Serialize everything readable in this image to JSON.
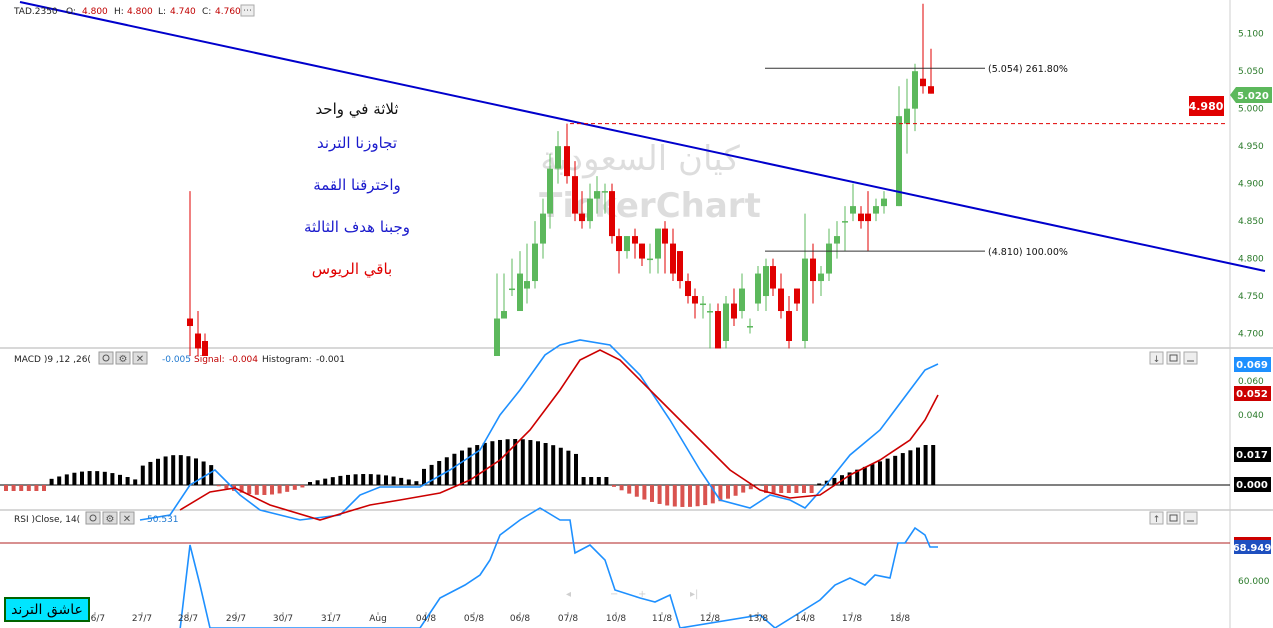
{
  "main_legend": {
    "symbol": "TAD.2350",
    "o_label": "O:",
    "o_value": "4.800",
    "h_label": "H:",
    "h_value": "4.800",
    "l_label": "L:",
    "l_value": "4.740",
    "c_label": "C:",
    "c_value": "4.760"
  },
  "annotations": {
    "line1": "ثلاثة في واحد",
    "line2": "تجاوزنا الترند",
    "line3": "واخترقنا القمة",
    "line4": "وجبنا هدف الثالثة",
    "line5": "باقي الريوس"
  },
  "watermark": {
    "arabic": "كيان السعودية",
    "latin": "TickerChart"
  },
  "fib": {
    "upper_label": "(5.054) 261.80%",
    "lower_label": "(4.810) 100.00%"
  },
  "price_badges": {
    "last": "5.020",
    "alert": "4.980"
  },
  "macd": {
    "title": "MACD  )9 ,12 ,26(",
    "macd_value": "-0.005",
    "signal_label": "Signal:",
    "signal_value": "-0.004",
    "hist_label": "Histogram:",
    "hist_value": "-0.001",
    "badges": {
      "macd": "0.069",
      "signal": "0.052",
      "hist": "0.017",
      "zero": "0.000"
    }
  },
  "rsi": {
    "title": "RSI  )Close, 14(",
    "value": "50.531",
    "badge": "68.949"
  },
  "bottom_badge": "عاشق الترند",
  "colors": {
    "up": "#5cb85c",
    "down": "#e00000",
    "trend": "#0000cc",
    "macd": "#1e90ff",
    "signal": "#cc0000",
    "hist_pos": "#000000",
    "hist_neg": "#d9534f"
  },
  "chart_data": [
    {
      "type": "candlestick",
      "title": "TAD.2350",
      "y_ticks": [
        "5.100",
        "5.050",
        "5.000",
        "4.950",
        "4.900",
        "4.850",
        "4.800",
        "4.750",
        "4.700"
      ],
      "ylim": [
        4.682,
        5.145
      ],
      "x_ticks": [
        "26/7",
        "27/7",
        "28/7",
        "29/7",
        "30/7",
        "31/7",
        "Aug",
        "04/8",
        "05/8",
        "06/8",
        "07/8",
        "10/8",
        "11/8",
        "12/8",
        "13/8",
        "14/8",
        "17/8",
        "18/8"
      ],
      "candles": [
        {
          "x": 190,
          "o": 4.72,
          "h": 4.89,
          "l": 4.67,
          "c": 4.71
        },
        {
          "x": 198,
          "o": 4.7,
          "h": 4.73,
          "l": 4.67,
          "c": 4.68
        },
        {
          "x": 205,
          "o": 4.69,
          "h": 4.7,
          "l": 4.67,
          "c": 4.67
        },
        {
          "x": 497,
          "o": 4.67,
          "h": 4.78,
          "l": 4.67,
          "c": 4.72
        },
        {
          "x": 504,
          "o": 4.72,
          "h": 4.78,
          "l": 4.72,
          "c": 4.73
        },
        {
          "x": 512,
          "o": 4.76,
          "h": 4.8,
          "l": 4.75,
          "c": 4.76
        },
        {
          "x": 520,
          "o": 4.73,
          "h": 4.81,
          "l": 4.73,
          "c": 4.78
        },
        {
          "x": 527,
          "o": 4.76,
          "h": 4.82,
          "l": 4.74,
          "c": 4.77
        },
        {
          "x": 535,
          "o": 4.77,
          "h": 4.85,
          "l": 4.76,
          "c": 4.82
        },
        {
          "x": 543,
          "o": 4.82,
          "h": 4.88,
          "l": 4.8,
          "c": 4.86
        },
        {
          "x": 550,
          "o": 4.86,
          "h": 4.94,
          "l": 4.84,
          "c": 4.92
        },
        {
          "x": 558,
          "o": 4.92,
          "h": 4.97,
          "l": 4.9,
          "c": 4.95
        },
        {
          "x": 567,
          "o": 4.95,
          "h": 4.98,
          "l": 4.9,
          "c": 4.91
        },
        {
          "x": 575,
          "o": 4.91,
          "h": 4.93,
          "l": 4.85,
          "c": 4.86
        },
        {
          "x": 582,
          "o": 4.86,
          "h": 4.89,
          "l": 4.84,
          "c": 4.85
        },
        {
          "x": 590,
          "o": 4.85,
          "h": 4.9,
          "l": 4.84,
          "c": 4.88
        },
        {
          "x": 597,
          "o": 4.88,
          "h": 4.91,
          "l": 4.86,
          "c": 4.89
        },
        {
          "x": 605,
          "o": 4.89,
          "h": 4.9,
          "l": 4.86,
          "c": 4.89
        },
        {
          "x": 612,
          "o": 4.89,
          "h": 4.9,
          "l": 4.82,
          "c": 4.83
        },
        {
          "x": 619,
          "o": 4.83,
          "h": 4.84,
          "l": 4.78,
          "c": 4.81
        },
        {
          "x": 627,
          "o": 4.81,
          "h": 4.83,
          "l": 4.8,
          "c": 4.83
        },
        {
          "x": 635,
          "o": 4.83,
          "h": 4.84,
          "l": 4.8,
          "c": 4.82
        },
        {
          "x": 642,
          "o": 4.82,
          "h": 4.82,
          "l": 4.79,
          "c": 4.8
        },
        {
          "x": 650,
          "o": 4.8,
          "h": 4.82,
          "l": 4.78,
          "c": 4.8
        },
        {
          "x": 658,
          "o": 4.8,
          "h": 4.84,
          "l": 4.78,
          "c": 4.84
        },
        {
          "x": 665,
          "o": 4.84,
          "h": 4.85,
          "l": 4.78,
          "c": 4.82
        },
        {
          "x": 673,
          "o": 4.82,
          "h": 4.84,
          "l": 4.77,
          "c": 4.78
        },
        {
          "x": 680,
          "o": 4.81,
          "h": 4.81,
          "l": 4.76,
          "c": 4.77
        },
        {
          "x": 688,
          "o": 4.77,
          "h": 4.78,
          "l": 4.74,
          "c": 4.75
        },
        {
          "x": 695,
          "o": 4.75,
          "h": 4.76,
          "l": 4.72,
          "c": 4.74
        },
        {
          "x": 703,
          "o": 4.74,
          "h": 4.75,
          "l": 4.72,
          "c": 4.74
        },
        {
          "x": 710,
          "o": 4.73,
          "h": 4.74,
          "l": 4.68,
          "c": 4.73
        },
        {
          "x": 718,
          "o": 4.73,
          "h": 4.74,
          "l": 4.68,
          "c": 4.68
        },
        {
          "x": 726,
          "o": 4.69,
          "h": 4.75,
          "l": 4.68,
          "c": 4.74
        },
        {
          "x": 734,
          "o": 4.74,
          "h": 4.76,
          "l": 4.71,
          "c": 4.72
        },
        {
          "x": 742,
          "o": 4.73,
          "h": 4.78,
          "l": 4.72,
          "c": 4.76
        },
        {
          "x": 750,
          "o": 4.71,
          "h": 4.72,
          "l": 4.7,
          "c": 4.71
        },
        {
          "x": 758,
          "o": 4.74,
          "h": 4.79,
          "l": 4.73,
          "c": 4.78
        },
        {
          "x": 766,
          "o": 4.75,
          "h": 4.8,
          "l": 4.73,
          "c": 4.79
        },
        {
          "x": 773,
          "o": 4.79,
          "h": 4.8,
          "l": 4.75,
          "c": 4.76
        },
        {
          "x": 781,
          "o": 4.76,
          "h": 4.78,
          "l": 4.72,
          "c": 4.73
        },
        {
          "x": 789,
          "o": 4.73,
          "h": 4.75,
          "l": 4.68,
          "c": 4.69
        },
        {
          "x": 797,
          "o": 4.76,
          "h": 4.76,
          "l": 4.73,
          "c": 4.74
        },
        {
          "x": 805,
          "o": 4.69,
          "h": 4.86,
          "l": 4.68,
          "c": 4.8
        },
        {
          "x": 813,
          "o": 4.8,
          "h": 4.82,
          "l": 4.74,
          "c": 4.77
        },
        {
          "x": 821,
          "o": 4.77,
          "h": 4.79,
          "l": 4.75,
          "c": 4.78
        },
        {
          "x": 829,
          "o": 4.78,
          "h": 4.84,
          "l": 4.77,
          "c": 4.82
        },
        {
          "x": 837,
          "o": 4.82,
          "h": 4.85,
          "l": 4.8,
          "c": 4.83
        },
        {
          "x": 845,
          "o": 4.85,
          "h": 4.87,
          "l": 4.81,
          "c": 4.85
        },
        {
          "x": 853,
          "o": 4.86,
          "h": 4.9,
          "l": 4.85,
          "c": 4.87
        },
        {
          "x": 861,
          "o": 4.86,
          "h": 4.87,
          "l": 4.84,
          "c": 4.85
        },
        {
          "x": 868,
          "o": 4.86,
          "h": 4.89,
          "l": 4.81,
          "c": 4.85
        },
        {
          "x": 876,
          "o": 4.86,
          "h": 4.88,
          "l": 4.85,
          "c": 4.87
        },
        {
          "x": 884,
          "o": 4.87,
          "h": 4.89,
          "l": 4.86,
          "c": 4.88
        },
        {
          "x": 899,
          "o": 4.87,
          "h": 5.03,
          "l": 4.87,
          "c": 4.99
        },
        {
          "x": 907,
          "o": 4.98,
          "h": 5.04,
          "l": 4.94,
          "c": 5.0
        },
        {
          "x": 915,
          "o": 5.0,
          "h": 5.06,
          "l": 4.97,
          "c": 5.05
        },
        {
          "x": 923,
          "o": 5.04,
          "h": 5.14,
          "l": 5.02,
          "c": 5.03
        },
        {
          "x": 931,
          "o": 5.03,
          "h": 5.08,
          "l": 5.02,
          "c": 5.02
        }
      ],
      "trendline": [
        [
          20,
          2
        ],
        [
          1265,
          271
        ]
      ],
      "fib_levels": [
        {
          "value": 5.054,
          "label": "(5.054) 261.80%"
        },
        {
          "value": 4.81,
          "label": "(4.810) 100.00%"
        }
      ],
      "alert_level": 4.98
    },
    {
      "type": "line",
      "title": "MACD )9 ,12 ,26(",
      "y_ticks": [
        "0.060",
        "0.040",
        "0.000"
      ],
      "ylim": [
        -0.015,
        0.08
      ],
      "series": [
        {
          "name": "MACD",
          "values": []
        },
        {
          "name": "Signal",
          "values": []
        }
      ]
    },
    {
      "type": "line",
      "title": "RSI )Close, 14(",
      "y_ticks": [
        "60.000"
      ],
      "series": [
        {
          "name": "RSI",
          "values": []
        }
      ],
      "reference_line": 68.949
    }
  ]
}
